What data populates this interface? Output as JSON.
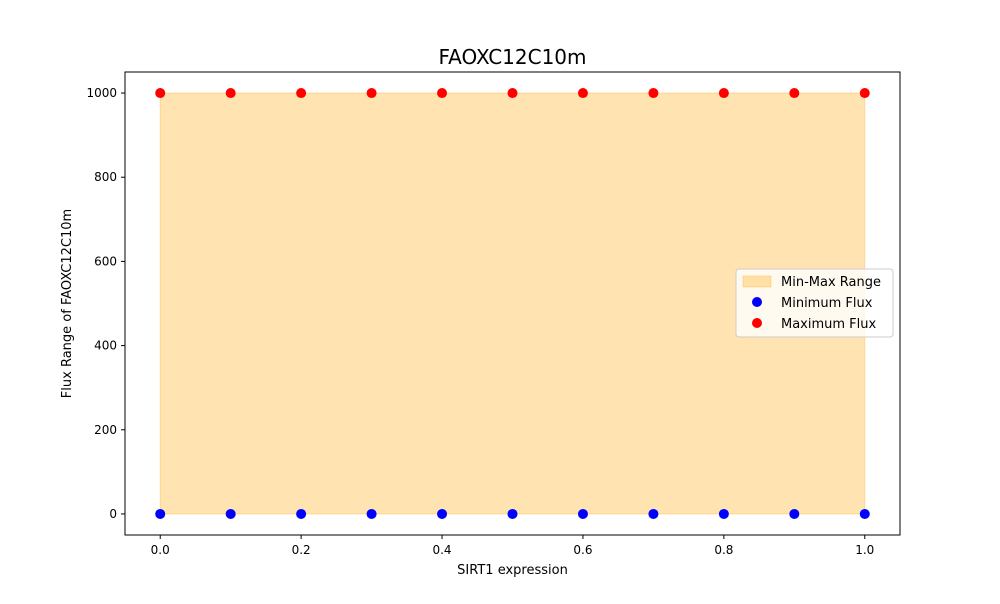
{
  "chart_data": {
    "type": "scatter",
    "title": "FAOXC12C10m",
    "xlabel": "SIRT1 expression",
    "ylabel": "Flux Range of FAOXC12C10m",
    "xlim": [
      -0.05,
      1.05
    ],
    "ylim": [
      -50,
      1050
    ],
    "xticks": [
      0.0,
      0.2,
      0.4,
      0.6,
      0.8,
      1.0
    ],
    "xtick_labels": [
      "0.0",
      "0.2",
      "0.4",
      "0.6",
      "0.8",
      "1.0"
    ],
    "yticks": [
      0,
      200,
      400,
      600,
      800,
      1000
    ],
    "ytick_labels": [
      "0",
      "200",
      "400",
      "600",
      "800",
      "1000"
    ],
    "grid": false,
    "legend_position": "center-right",
    "x": [
      0.0,
      0.1,
      0.2,
      0.3,
      0.4,
      0.5,
      0.6,
      0.7,
      0.8,
      0.9,
      1.0
    ],
    "fill": {
      "name": "Min-Max Range",
      "color": "#FFA500",
      "alpha": 0.3,
      "lower": [
        0,
        0,
        0,
        0,
        0,
        0,
        0,
        0,
        0,
        0,
        0
      ],
      "upper": [
        1000,
        1000,
        1000,
        1000,
        1000,
        1000,
        1000,
        1000,
        1000,
        1000,
        1000
      ]
    },
    "series": [
      {
        "name": "Minimum Flux",
        "color": "#0000FF",
        "values": [
          0,
          0,
          0,
          0,
          0,
          0,
          0,
          0,
          0,
          0,
          0
        ]
      },
      {
        "name": "Maximum Flux",
        "color": "#FF0000",
        "values": [
          1000,
          1000,
          1000,
          1000,
          1000,
          1000,
          1000,
          1000,
          1000,
          1000,
          1000
        ]
      }
    ]
  }
}
